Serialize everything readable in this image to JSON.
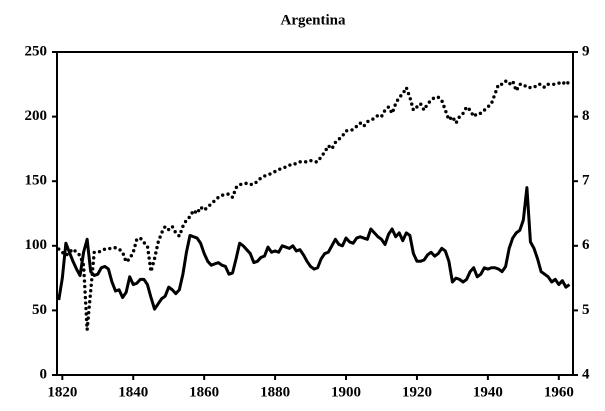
{
  "chart_data": {
    "type": "line",
    "title": "Argentina",
    "x": [
      1819,
      1820,
      1821,
      1822,
      1823,
      1824,
      1825,
      1826,
      1827,
      1828,
      1829,
      1830,
      1831,
      1832,
      1833,
      1834,
      1835,
      1836,
      1837,
      1838,
      1839,
      1840,
      1841,
      1842,
      1843,
      1844,
      1845,
      1846,
      1847,
      1848,
      1849,
      1850,
      1851,
      1852,
      1853,
      1854,
      1855,
      1856,
      1857,
      1858,
      1859,
      1860,
      1861,
      1862,
      1863,
      1864,
      1865,
      1866,
      1867,
      1868,
      1869,
      1870,
      1871,
      1872,
      1873,
      1874,
      1875,
      1876,
      1877,
      1878,
      1879,
      1880,
      1881,
      1882,
      1883,
      1884,
      1885,
      1886,
      1887,
      1888,
      1889,
      1890,
      1891,
      1892,
      1893,
      1894,
      1895,
      1896,
      1897,
      1898,
      1899,
      1900,
      1901,
      1902,
      1903,
      1904,
      1905,
      1906,
      1907,
      1908,
      1909,
      1910,
      1911,
      1912,
      1913,
      1914,
      1915,
      1916,
      1917,
      1918,
      1919,
      1920,
      1921,
      1922,
      1923,
      1924,
      1925,
      1926,
      1927,
      1928,
      1929,
      1930,
      1931,
      1932,
      1933,
      1934,
      1935,
      1936,
      1937,
      1938,
      1939,
      1940,
      1941,
      1942,
      1943,
      1944,
      1945,
      1946,
      1947,
      1948,
      1949,
      1950,
      1951,
      1952,
      1953,
      1954,
      1955,
      1956,
      1957,
      1958,
      1959,
      1960,
      1961,
      1962,
      1963
    ],
    "series": [
      {
        "color": "#000000",
        "line_style": "solid",
        "axis": "y",
        "values": [
          58,
          75,
          102,
          95,
          88,
          82,
          77,
          95,
          105,
          80,
          77,
          78,
          83,
          84,
          82,
          72,
          65,
          66,
          60,
          64,
          76,
          70,
          71,
          74,
          74,
          70,
          60,
          51,
          55,
          59,
          61,
          68,
          66,
          63,
          66,
          78,
          95,
          108,
          107,
          106,
          102,
          94,
          88,
          85,
          86,
          87,
          85,
          84,
          78,
          79,
          90,
          102,
          100,
          97,
          94,
          87,
          88,
          91,
          92,
          99,
          95,
          96,
          95,
          100,
          99,
          98,
          100,
          96,
          97,
          93,
          88,
          84,
          82,
          83,
          90,
          94,
          95,
          100,
          105,
          101,
          100,
          106,
          103,
          102,
          106,
          107,
          106,
          105,
          113,
          110,
          107,
          105,
          101,
          109,
          113,
          107,
          110,
          104,
          110,
          108,
          94,
          88,
          88,
          89,
          93,
          95,
          92,
          94,
          98,
          96,
          88,
          72,
          75,
          74,
          72,
          74,
          80,
          83,
          76,
          78,
          83,
          82,
          83,
          83,
          82,
          80,
          84,
          98,
          106,
          110,
          112,
          120,
          145,
          103,
          98,
          90,
          80,
          78,
          76,
          72,
          74,
          70,
          73,
          68,
          70
        ]
      },
      {
        "color": "#000000",
        "line_style": "dotted",
        "axis": "y2",
        "values": [
          5.95,
          5.9,
          5.85,
          5.9,
          5.95,
          5.9,
          5.85,
          5.7,
          4.7,
          5.3,
          5.9,
          5.9,
          5.92,
          5.95,
          5.95,
          5.97,
          5.97,
          5.95,
          5.9,
          5.75,
          5.8,
          5.9,
          6.1,
          6.12,
          6.05,
          6.0,
          5.6,
          5.8,
          6.05,
          6.2,
          6.3,
          6.25,
          6.3,
          6.2,
          6.15,
          6.3,
          6.4,
          6.45,
          6.55,
          6.5,
          6.6,
          6.55,
          6.6,
          6.65,
          6.7,
          6.75,
          6.78,
          6.8,
          6.8,
          6.75,
          6.9,
          6.95,
          6.95,
          6.97,
          6.95,
          6.95,
          7.0,
          7.05,
          7.08,
          7.1,
          7.12,
          7.15,
          7.18,
          7.2,
          7.22,
          7.25,
          7.25,
          7.28,
          7.3,
          7.3,
          7.3,
          7.32,
          7.3,
          7.3,
          7.38,
          7.45,
          7.55,
          7.5,
          7.6,
          7.65,
          7.7,
          7.78,
          7.78,
          7.8,
          7.85,
          7.9,
          7.85,
          7.92,
          7.95,
          7.97,
          8.02,
          8.0,
          8.1,
          8.15,
          8.05,
          8.2,
          8.3,
          8.35,
          8.45,
          8.3,
          8.1,
          8.15,
          8.2,
          8.1,
          8.2,
          8.25,
          8.3,
          8.3,
          8.25,
          8.1,
          7.95,
          8.0,
          7.9,
          8.0,
          8.05,
          8.15,
          8.1,
          8.0,
          8.05,
          8.05,
          8.1,
          8.15,
          8.2,
          8.35,
          8.5,
          8.5,
          8.55,
          8.5,
          8.55,
          8.4,
          8.5,
          8.5,
          8.45,
          8.45,
          8.45,
          8.5,
          8.5,
          8.45,
          8.5,
          8.5,
          8.5,
          8.52,
          8.5,
          8.55,
          8.5
        ]
      }
    ],
    "xlim": [
      1818.5,
      1964
    ],
    "xticks": [
      1820,
      1840,
      1860,
      1880,
      1900,
      1920,
      1940,
      1960
    ],
    "ylim": [
      0,
      250
    ],
    "yticks": [
      0,
      50,
      100,
      150,
      200,
      250
    ],
    "y2lim": [
      4,
      9
    ],
    "y2ticks": [
      4,
      5,
      6,
      7,
      8,
      9
    ],
    "grid": false
  }
}
